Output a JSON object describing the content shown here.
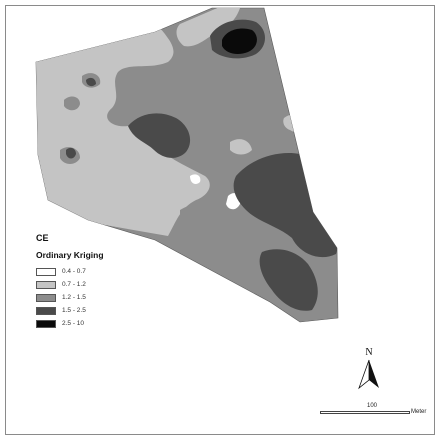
{
  "legend": {
    "title": "CE",
    "subtitle": "Ordinary Kriging",
    "classes": [
      {
        "label": "0.4 - 0.7",
        "color": "#ffffff"
      },
      {
        "label": "0.7 - 1.2",
        "color": "#c4c4c4"
      },
      {
        "label": "1.2 - 1.5",
        "color": "#8c8c8c"
      },
      {
        "label": "1.5 - 2.5",
        "color": "#4a4a4a"
      },
      {
        "label": "2.5 - 10",
        "color": "#0a0a0a"
      }
    ]
  },
  "north_arrow": {
    "label": "N"
  },
  "scale_bar": {
    "value": "100",
    "unit": "Meter"
  }
}
